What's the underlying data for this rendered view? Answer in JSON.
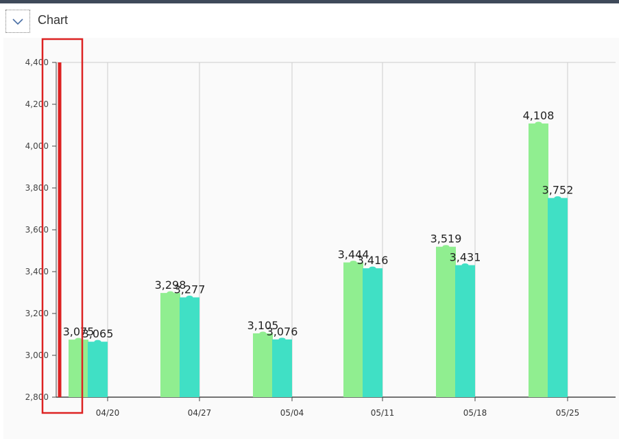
{
  "header": {
    "title": "Chart",
    "toggle_icon": "chevron-down-icon"
  },
  "colors": {
    "series_a": "#90ee90",
    "series_b": "#40e0c5",
    "highlight": "#dd2222",
    "grid": "#cccccc",
    "axis": "#444444"
  },
  "chart_data": {
    "type": "bar",
    "title": "",
    "xlabel": "",
    "ylabel": "",
    "categories": [
      "04/20",
      "04/27",
      "05/04",
      "05/11",
      "05/18",
      "05/25"
    ],
    "series": [
      {
        "values": [
          3075,
          3298,
          3105,
          3444,
          3519,
          4108
        ]
      },
      {
        "values": [
          3065,
          3277,
          3076,
          3416,
          3431,
          3752
        ]
      }
    ],
    "ylim": [
      2800,
      4400
    ],
    "yticks": [
      "2,800",
      "3,000",
      "3,200",
      "3,400",
      "3,600",
      "3,800",
      "4,000",
      "4,200",
      "4,400"
    ],
    "data_labels": [
      [
        "3,075",
        "3,298",
        "3,105",
        "3,444",
        "3,519",
        "4,108"
      ],
      [
        "3,065",
        "3,277",
        "3,076",
        "3,416",
        "3,431",
        "3,752"
      ]
    ],
    "grid": {
      "vertical": true,
      "horizontal": false
    },
    "highlight_marker_value": 4400
  }
}
